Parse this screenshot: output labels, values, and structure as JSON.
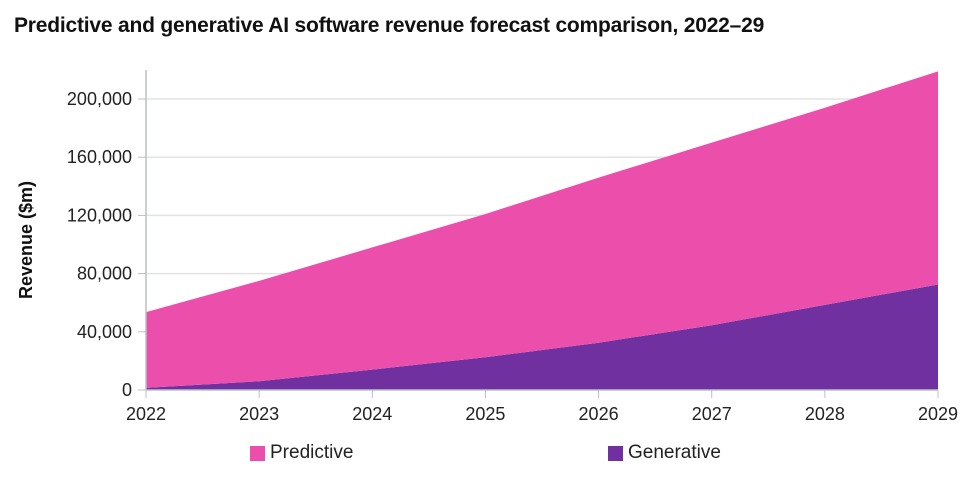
{
  "chart_data": {
    "type": "area",
    "stacked": true,
    "title": "Predictive and generative AI software revenue forecast comparison, 2022–29",
    "xlabel": "",
    "ylabel": "Revenue ($m)",
    "x": [
      "2022",
      "2023",
      "2024",
      "2025",
      "2026",
      "2027",
      "2028",
      "2029"
    ],
    "ylim": [
      0,
      200000
    ],
    "yticks": [
      0,
      40000,
      80000,
      120000,
      160000,
      200000
    ],
    "ytick_labels": [
      "0",
      "40,000",
      "80,000",
      "120,000",
      "160,000",
      "200,000"
    ],
    "grid": true,
    "legend_position": "bottom",
    "series": [
      {
        "name": "Generative",
        "color": "#7030A0",
        "values": [
          1500,
          6000,
          14000,
          22500,
          32500,
          44500,
          58500,
          72500
        ]
      },
      {
        "name": "Predictive",
        "color": "#EC4FAB",
        "values": [
          52000,
          69000,
          84000,
          98500,
          113500,
          125500,
          135500,
          146500
        ]
      }
    ],
    "totals": [
      53500,
      75000,
      98000,
      121000,
      146000,
      170000,
      194000,
      219000
    ]
  },
  "legend": [
    {
      "label": "Predictive",
      "color": "#EC4FAB"
    },
    {
      "label": "Generative",
      "color": "#7030A0"
    }
  ]
}
